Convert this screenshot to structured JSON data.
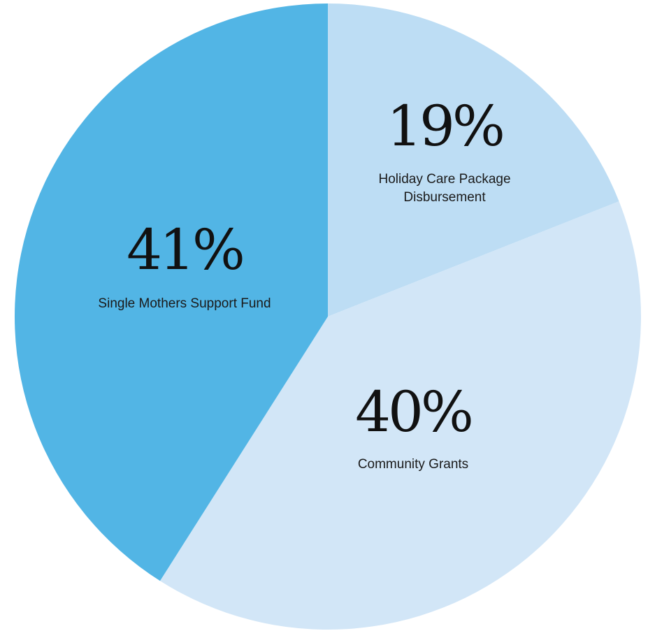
{
  "chart_data": {
    "type": "pie",
    "slices": [
      {
        "pct_label": "19%",
        "value": 19,
        "name_lines": [
          "Holiday Care Package",
          "Disbursement"
        ],
        "color": "#BDDDF4"
      },
      {
        "pct_label": "40%",
        "value": 40,
        "name_lines": [
          "Community Grants"
        ],
        "color": "#D2E6F7"
      },
      {
        "pct_label": "41%",
        "value": 41,
        "name_lines": [
          "Single Mothers Support Fund"
        ],
        "color": "#52B5E5"
      }
    ]
  }
}
